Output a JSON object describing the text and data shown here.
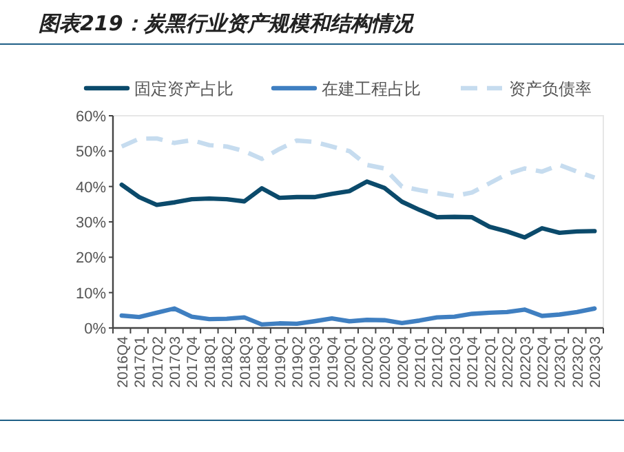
{
  "chart_data": {
    "type": "line",
    "title": "图表219：炭黑行业资产规模和结构情况",
    "categories": [
      "2016Q4",
      "2017Q1",
      "2017Q2",
      "2017Q3",
      "2017Q4",
      "2018Q1",
      "2018Q2",
      "2018Q3",
      "2018Q4",
      "2019Q1",
      "2019Q2",
      "2019Q3",
      "2019Q4",
      "2020Q1",
      "2020Q2",
      "2020Q3",
      "2020Q4",
      "2021Q1",
      "2021Q2",
      "2021Q3",
      "2021Q4",
      "2022Q1",
      "2022Q2",
      "2022Q3",
      "2022Q4",
      "2023Q1",
      "2023Q2",
      "2023Q3"
    ],
    "series": [
      {
        "name": "固定资产占比",
        "color": "#0b4a6b",
        "line_style": "solid",
        "values": [
          40.5,
          37,
          34.8,
          35.5,
          36.4,
          36.6,
          36.4,
          35.8,
          39.5,
          36.8,
          37,
          37,
          37.9,
          38.7,
          41.4,
          39.6,
          35.7,
          33.4,
          31.3,
          31.4,
          31.3,
          28.6,
          27.3,
          25.6,
          28.2,
          26.9,
          27.3,
          27.4
        ]
      },
      {
        "name": "在建工程占比",
        "color": "#3f7fc1",
        "line_style": "solid",
        "values": [
          3.5,
          3.1,
          4.3,
          5.5,
          3.2,
          2.5,
          2.6,
          3,
          1,
          1.3,
          1.2,
          1.9,
          2.7,
          1.9,
          2.3,
          2.2,
          1.4,
          2.1,
          3,
          3.2,
          4,
          4.3,
          4.5,
          5.2,
          3.4,
          3.8,
          4.5,
          5.5
        ]
      },
      {
        "name": "资产负债率",
        "color": "#c6dcef",
        "line_style": "dashed",
        "values": [
          51.3,
          53.5,
          53.6,
          52.3,
          53.1,
          51.7,
          51.3,
          50,
          47.8,
          50.6,
          53,
          52.6,
          51.3,
          50,
          46.1,
          45.1,
          40,
          39,
          38.1,
          37.3,
          38.3,
          40.9,
          43.5,
          45.1,
          44.2,
          46.1,
          44.2,
          42.5
        ]
      }
    ],
    "ylim": [
      0,
      60
    ],
    "yticks": [
      {
        "value": 0,
        "label": "0%"
      },
      {
        "value": 10,
        "label": "10%"
      },
      {
        "value": 20,
        "label": "20%"
      },
      {
        "value": 30,
        "label": "30%"
      },
      {
        "value": 40,
        "label": "40%"
      },
      {
        "value": 50,
        "label": "50%"
      },
      {
        "value": 60,
        "label": "60%"
      }
    ],
    "grid": false,
    "legend": "top",
    "marker": "none"
  }
}
